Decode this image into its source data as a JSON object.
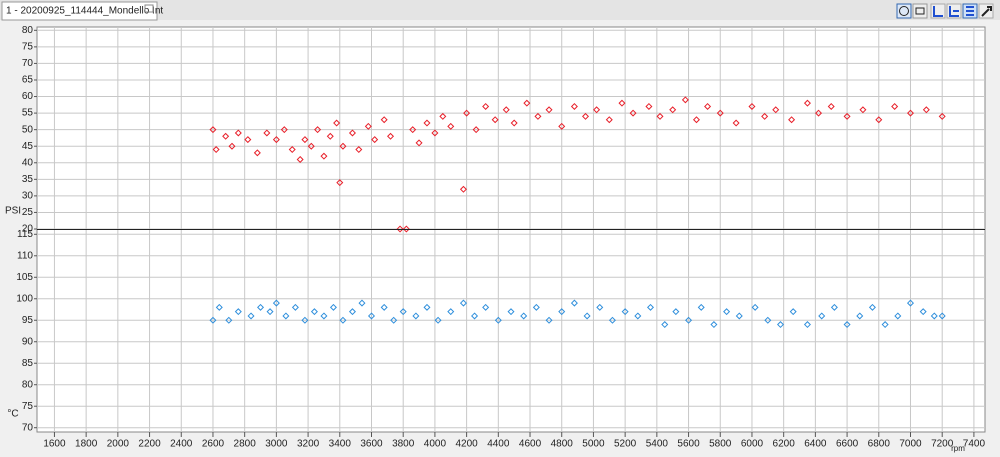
{
  "window": {
    "tab": "1 - 20200925_114444_Mondello Int"
  },
  "chart_data": [
    {
      "type": "scatter",
      "ylabel": "PSI",
      "grid": true,
      "ylim": [
        20,
        81
      ],
      "yticks": [
        20,
        25,
        30,
        35,
        40,
        45,
        50,
        55,
        60,
        65,
        70,
        75,
        80
      ],
      "series": [
        {
          "color": "#e8202a",
          "x": [
            2600,
            2620,
            2680,
            2720,
            2760,
            2820,
            2880,
            2940,
            3000,
            3050,
            3100,
            3150,
            3180,
            3220,
            3260,
            3300,
            3340,
            3380,
            3400,
            3420,
            3480,
            3520,
            3580,
            3620,
            3680,
            3720,
            3780,
            3820,
            3860,
            3900,
            3950,
            4000,
            4050,
            4100,
            4180,
            4200,
            4260,
            4320,
            4380,
            4450,
            4500,
            4580,
            4650,
            4720,
            4800,
            4880,
            4950,
            5020,
            5100,
            5180,
            5250,
            5350,
            5420,
            5500,
            5580,
            5650,
            5720,
            5800,
            5900,
            6000,
            6080,
            6150,
            6250,
            6350,
            6420,
            6500,
            6600,
            6700,
            6800,
            6900,
            7000,
            7100,
            7200
          ],
          "values": [
            50,
            44,
            48,
            45,
            49,
            47,
            43,
            49,
            47,
            50,
            44,
            41,
            47,
            45,
            50,
            42,
            48,
            52,
            34,
            45,
            49,
            44,
            51,
            47,
            53,
            48,
            20,
            20,
            50,
            46,
            52,
            49,
            54,
            51,
            32,
            55,
            50,
            57,
            53,
            56,
            52,
            58,
            54,
            56,
            51,
            57,
            54,
            56,
            53,
            58,
            55,
            57,
            54,
            56,
            59,
            53,
            57,
            55,
            52,
            57,
            54,
            56,
            53,
            58,
            55,
            57,
            54,
            56,
            53,
            57,
            55,
            56,
            54
          ]
        }
      ]
    },
    {
      "type": "scatter",
      "ylabel": "°C",
      "xlabel": "rpm",
      "grid": true,
      "xlim": [
        1490,
        7470
      ],
      "xticks": [
        1600,
        1800,
        2000,
        2200,
        2400,
        2600,
        2800,
        3000,
        3200,
        3400,
        3600,
        3800,
        4000,
        4200,
        4400,
        4600,
        4800,
        5000,
        5200,
        5400,
        5600,
        5800,
        6000,
        6200,
        6400,
        6600,
        6800,
        7000,
        7200,
        7400
      ],
      "ylim": [
        69,
        116
      ],
      "yticks": [
        70,
        75,
        80,
        85,
        90,
        95,
        100,
        105,
        110,
        115
      ],
      "series": [
        {
          "color": "#2f8fdc",
          "x": [
            2600,
            2640,
            2700,
            2760,
            2840,
            2900,
            2960,
            3000,
            3060,
            3120,
            3180,
            3240,
            3300,
            3360,
            3420,
            3480,
            3540,
            3600,
            3680,
            3740,
            3800,
            3880,
            3950,
            4020,
            4100,
            4180,
            4250,
            4320,
            4400,
            4480,
            4560,
            4640,
            4720,
            4800,
            4880,
            4960,
            5040,
            5120,
            5200,
            5280,
            5360,
            5450,
            5520,
            5600,
            5680,
            5760,
            5840,
            5920,
            6020,
            6100,
            6180,
            6260,
            6350,
            6440,
            6520,
            6600,
            6680,
            6760,
            6840,
            6920,
            7000,
            7080,
            7150,
            7200
          ],
          "values": [
            95,
            98,
            95,
            97,
            96,
            98,
            97,
            99,
            96,
            98,
            95,
            97,
            96,
            98,
            95,
            97,
            99,
            96,
            98,
            95,
            97,
            96,
            98,
            95,
            97,
            99,
            96,
            98,
            95,
            97,
            96,
            98,
            95,
            97,
            99,
            96,
            98,
            95,
            97,
            96,
            98,
            94,
            97,
            95,
            98,
            94,
            97,
            96,
            98,
            95,
            94,
            97,
            94,
            96,
            98,
            94,
            96,
            98,
            94,
            96,
            99,
            97,
            96,
            96
          ]
        }
      ]
    }
  ]
}
